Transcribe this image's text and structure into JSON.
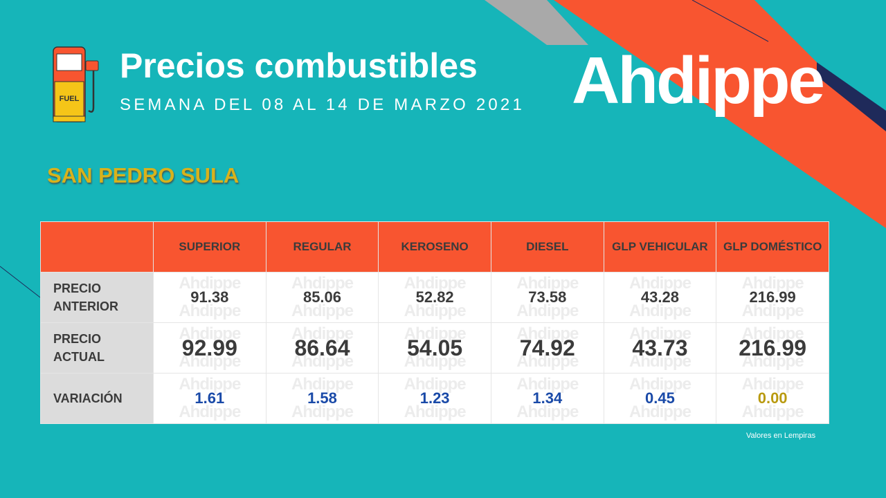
{
  "header": {
    "title": "Precios combustibles",
    "subtitle": "SEMANA DEL 08 AL 14 DE MARZO 2021",
    "logo": "Ahdippe",
    "icon_label": "FUEL"
  },
  "city": "SAN PEDRO SULA",
  "table": {
    "columns": [
      "SUPERIOR",
      "REGULAR",
      "KEROSENO",
      "DIESEL",
      "GLP VEHICULAR",
      "GLP DOMÉSTICO"
    ],
    "rows": [
      {
        "label": "PRECIO ANTERIOR",
        "values": [
          "91.38",
          "85.06",
          "52.82",
          "73.58",
          "43.28",
          "216.99"
        ]
      },
      {
        "label": "PRECIO ACTUAL",
        "values": [
          "92.99",
          "86.64",
          "54.05",
          "74.92",
          "43.73",
          "216.99"
        ]
      },
      {
        "label": "VARIACIÓN",
        "values": [
          "1.61",
          "1.58",
          "1.23",
          "1.34",
          "0.45",
          "0.00"
        ]
      }
    ],
    "watermark": "Ahdippe"
  },
  "footnote": "Valores en Lempiras"
}
